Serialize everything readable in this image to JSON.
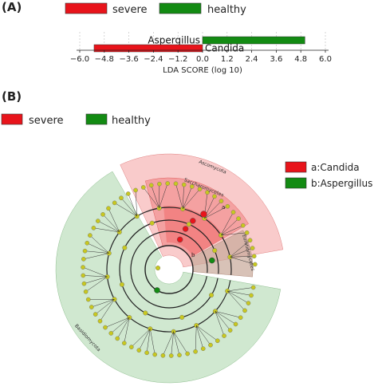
{
  "panel_a": {
    "label": "(A)",
    "legend": [
      {
        "name": "severe",
        "color": "#e8141b"
      },
      {
        "name": "healthy",
        "color": "#138b13"
      }
    ],
    "chart_data": {
      "type": "bar",
      "orientation": "horizontal",
      "categories": [
        "Aspergillus",
        "Candida"
      ],
      "values": [
        5.0,
        -5.3
      ],
      "group": [
        "healthy",
        "severe"
      ],
      "xlabel": "LDA SCORE (log 10)",
      "xlim": [
        -6.0,
        6.0
      ],
      "xticks": [
        "−6.0",
        "−4.8",
        "−3.6",
        "−2.4",
        "−1.2",
        "0.0",
        "1.2",
        "2.4",
        "3.6",
        "4.8",
        "6.0"
      ],
      "xtick_values": [
        -6.0,
        -4.8,
        -3.6,
        -2.4,
        -1.2,
        0.0,
        1.2,
        2.4,
        3.6,
        4.8,
        6.0
      ],
      "grid": "dashed vertical"
    }
  },
  "panel_b": {
    "label": "(B)",
    "legend_top": [
      {
        "name": "severe",
        "color": "#e8141b"
      },
      {
        "name": "healthy",
        "color": "#138b13"
      }
    ],
    "legend_side": [
      {
        "name": "a:Candida",
        "color": "#e8141b"
      },
      {
        "name": "b:Aspergillus",
        "color": "#138b13"
      }
    ],
    "cladogram": {
      "clades": [
        {
          "label": "Ascomycota",
          "color": "#f4a0a0"
        },
        {
          "label": "Saccharomycetes",
          "color": "#f08080"
        },
        {
          "label": "Eurotiomycetes",
          "color": "#c8a898"
        },
        {
          "label": "Basidiomycota",
          "color": "#b0d8b0"
        }
      ],
      "markers": [
        {
          "label": "a",
          "color": "#e8141b"
        },
        {
          "label": "b",
          "color": "#138b13"
        }
      ],
      "node_color": "#c8c820"
    }
  }
}
